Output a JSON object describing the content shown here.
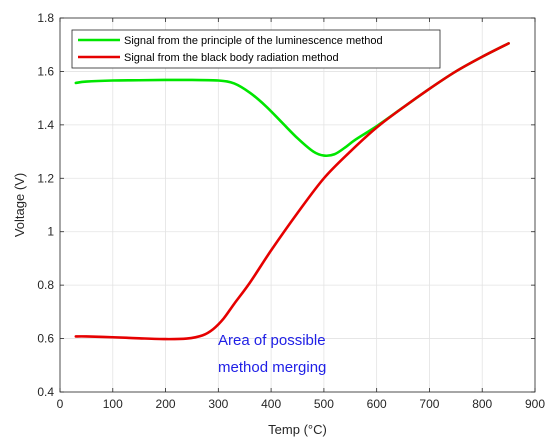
{
  "chart_data": {
    "type": "line",
    "xlabel": "Temp (°C)",
    "ylabel": "Voltage (V)",
    "xlim": [
      0,
      900
    ],
    "ylim": [
      0.4,
      1.8
    ],
    "xticks": [
      0,
      100,
      200,
      300,
      400,
      500,
      600,
      700,
      800,
      900
    ],
    "xtick_labels": [
      "0",
      "100",
      "200",
      "300",
      "400",
      "500",
      "600",
      "700",
      "800",
      "900"
    ],
    "yticks": [
      0.4,
      0.6,
      0.8,
      1.0,
      1.2,
      1.4,
      1.6,
      1.8
    ],
    "ytick_labels": [
      "0.4",
      "0.6",
      "0.8",
      "1",
      "1.2",
      "1.4",
      "1.6",
      "1.8"
    ],
    "grid": true,
    "legend_position": "top-left",
    "series": [
      {
        "name": "Signal from the principle of the luminescence method",
        "color": "#00e600",
        "x": [
          30,
          50,
          100,
          150,
          200,
          250,
          300,
          330,
          360,
          390,
          420,
          450,
          480,
          500,
          520,
          540,
          560,
          600,
          650,
          700,
          750,
          800,
          850
        ],
        "y": [
          1.557,
          1.562,
          1.566,
          1.567,
          1.568,
          1.568,
          1.566,
          1.555,
          1.52,
          1.47,
          1.41,
          1.35,
          1.3,
          1.285,
          1.29,
          1.315,
          1.345,
          1.395,
          1.465,
          1.535,
          1.6,
          1.655,
          1.705
        ]
      },
      {
        "name": "Signal from the black body radiation method",
        "color": "#e60000",
        "x": [
          30,
          50,
          100,
          150,
          200,
          240,
          270,
          290,
          310,
          330,
          360,
          400,
          450,
          500,
          550,
          600,
          650,
          700,
          750,
          800,
          850
        ],
        "y": [
          0.608,
          0.608,
          0.605,
          0.601,
          0.598,
          0.6,
          0.612,
          0.635,
          0.675,
          0.73,
          0.81,
          0.93,
          1.07,
          1.2,
          1.3,
          1.39,
          1.465,
          1.535,
          1.6,
          1.655,
          1.705
        ]
      }
    ],
    "annotations": [
      {
        "lines": [
          "Area of possible",
          "method merging"
        ],
        "x": 300,
        "y": 0.62,
        "color": "#1f1fe6"
      }
    ]
  }
}
